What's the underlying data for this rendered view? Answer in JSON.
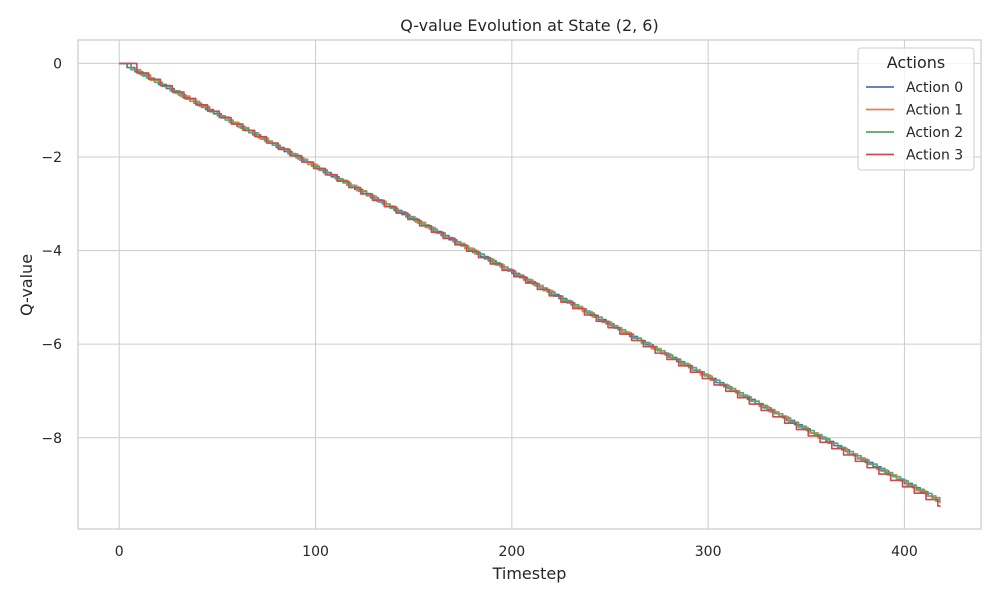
{
  "chart_data": {
    "type": "line",
    "title": "Q-value Evolution at State (2, 6)",
    "xlabel": "Timestep",
    "ylabel": "Q-value",
    "xlim": [
      -21,
      439
    ],
    "ylim": [
      -9.95,
      0.5
    ],
    "xticks": [
      0,
      100,
      200,
      300,
      400
    ],
    "yticks": [
      0,
      -2,
      -4,
      -6,
      -8
    ],
    "ytick_labels": [
      "0",
      "−2",
      "−4",
      "−6",
      "−8"
    ],
    "grid": true,
    "legend": {
      "title": "Actions",
      "placement": "top-right"
    },
    "x_range": [
      0,
      418
    ],
    "series": [
      {
        "name": "Action 0",
        "color": "#4c72b0",
        "start": 0.0,
        "end": -9.38,
        "step": 4,
        "offset": 0
      },
      {
        "name": "Action 1",
        "color": "#dd8452",
        "start": 0.0,
        "end": -9.4,
        "step": 5,
        "offset": 1
      },
      {
        "name": "Action 2",
        "color": "#55a868",
        "start": 0.0,
        "end": -9.37,
        "step": 4,
        "offset": 2
      },
      {
        "name": "Action 3",
        "color": "#c44e52",
        "start": 0.0,
        "end": -9.48,
        "step": 6,
        "offset": 3
      }
    ]
  }
}
